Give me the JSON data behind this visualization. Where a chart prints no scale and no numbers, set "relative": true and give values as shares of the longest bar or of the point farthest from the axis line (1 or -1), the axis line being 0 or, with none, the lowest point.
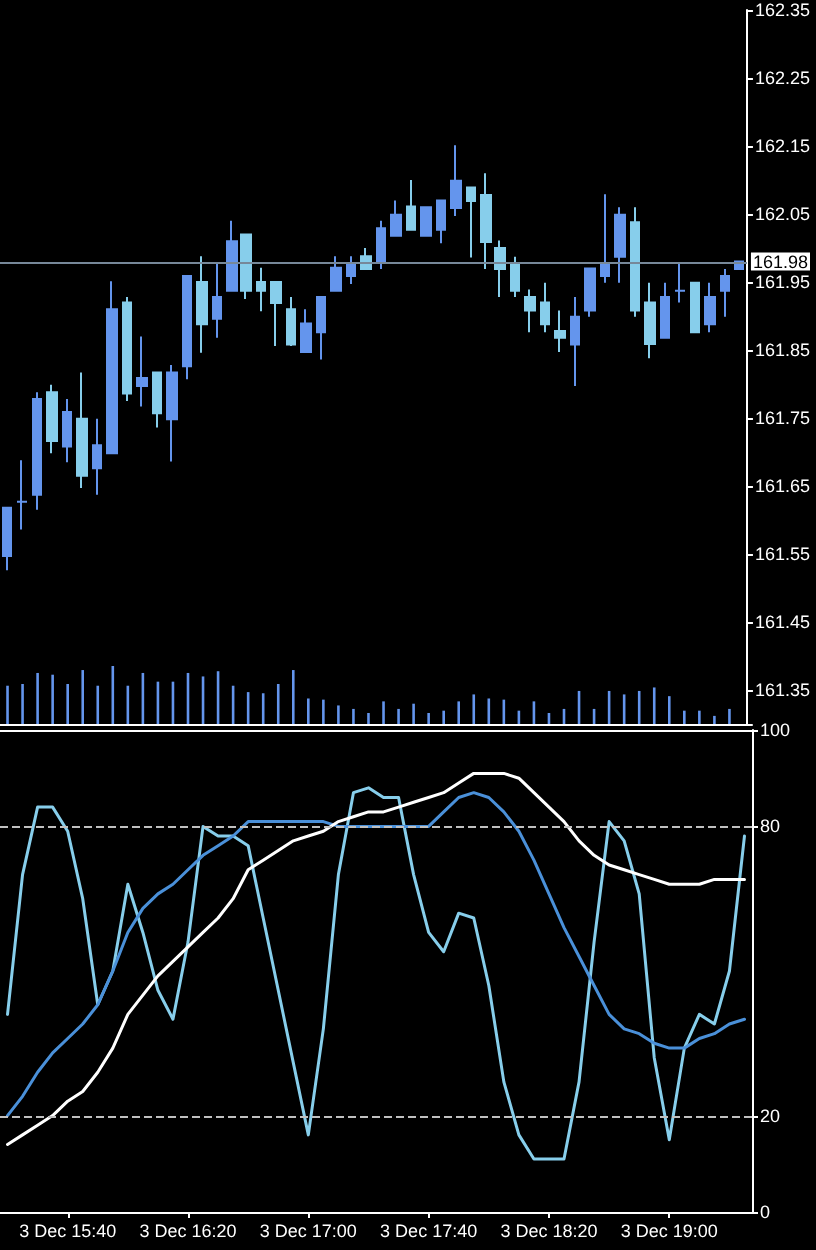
{
  "chart_data": [
    {
      "type": "candlestick",
      "categories": [
        null,
        null,
        null,
        null,
        null,
        null,
        null,
        null,
        null,
        null,
        null,
        null,
        null,
        null,
        null,
        null,
        null,
        null,
        null,
        null,
        null,
        null,
        null,
        null,
        null,
        null,
        null,
        null,
        null,
        null,
        null,
        null,
        null,
        null,
        null,
        null,
        null,
        null,
        null,
        null,
        null,
        null,
        null,
        null,
        null,
        null,
        null,
        null,
        null,
        null
      ],
      "ohlc": [
        [
          161.547,
          161.618,
          161.526,
          161.618
        ],
        [
          161.627,
          161.688,
          161.586,
          161.627
        ],
        [
          161.637,
          161.788,
          161.615,
          161.778
        ],
        [
          161.788,
          161.799,
          161.698,
          161.716
        ],
        [
          161.708,
          161.778,
          161.685,
          161.759
        ],
        [
          161.749,
          161.817,
          161.647,
          161.665
        ],
        [
          161.676,
          161.749,
          161.637,
          161.71
        ],
        [
          161.698,
          161.951,
          161.698,
          161.91
        ],
        [
          161.92,
          161.928,
          161.775,
          161.786
        ],
        [
          161.797,
          161.87,
          161.767,
          161.809
        ],
        [
          161.817,
          161.817,
          161.736,
          161.757
        ],
        [
          161.748,
          161.828,
          161.686,
          161.817
        ],
        [
          161.826,
          161.959,
          161.807,
          161.959
        ],
        [
          161.95,
          161.988,
          161.846,
          161.888
        ],
        [
          161.896,
          161.978,
          161.868,
          161.928
        ],
        [
          161.937,
          162.04,
          161.937,
          162.01
        ],
        [
          162.02,
          162.02,
          161.925,
          161.937
        ],
        [
          161.95,
          161.971,
          161.907,
          161.937
        ],
        [
          161.95,
          161.95,
          161.856,
          161.919
        ],
        [
          161.91,
          161.928,
          161.856,
          161.858
        ],
        [
          161.847,
          161.91,
          161.847,
          161.889
        ],
        [
          161.876,
          161.928,
          161.836,
          161.928
        ],
        [
          161.937,
          161.988,
          161.937,
          161.971
        ],
        [
          161.959,
          161.988,
          161.947,
          161.978
        ],
        [
          161.988,
          162.0,
          161.969,
          161.969
        ],
        [
          161.978,
          162.04,
          161.969,
          162.029
        ],
        [
          162.018,
          162.07,
          162.018,
          162.049
        ],
        [
          162.061,
          162.1,
          162.027,
          162.027
        ],
        [
          162.018,
          162.06,
          162.018,
          162.06
        ],
        [
          162.027,
          162.07,
          162.007,
          162.07
        ],
        [
          162.059,
          162.151,
          162.047,
          162.099
        ],
        [
          162.089,
          162.089,
          161.986,
          162.069
        ],
        [
          162.078,
          162.11,
          161.969,
          162.009
        ],
        [
          162.0,
          162.011,
          161.928,
          161.969
        ],
        [
          161.978,
          161.987,
          161.928,
          161.937
        ],
        [
          161.928,
          161.939,
          161.876,
          161.908
        ],
        [
          161.92,
          161.949,
          161.876,
          161.888
        ],
        [
          161.878,
          161.908,
          161.847,
          161.868
        ],
        [
          161.858,
          161.928,
          161.797,
          161.899
        ],
        [
          161.908,
          161.97,
          161.899,
          161.97
        ],
        [
          161.959,
          162.079,
          161.949,
          161.978
        ],
        [
          161.987,
          162.06,
          161.949,
          162.049
        ],
        [
          162.038,
          162.06,
          161.899,
          161.908
        ],
        [
          161.92,
          161.949,
          161.838,
          161.859
        ],
        [
          161.868,
          161.949,
          161.868,
          161.928
        ],
        [
          161.937,
          161.978,
          161.92,
          161.937
        ],
        [
          161.949,
          161.949,
          161.876,
          161.876
        ],
        [
          161.888,
          161.949,
          161.876,
          161.928
        ],
        [
          161.937,
          161.969,
          161.899,
          161.959
        ],
        [
          161.969,
          161.98,
          161.969,
          161.98
        ]
      ],
      "colors": [
        "#6495ed",
        "#6495ed",
        "#6495ed",
        "#87ceeb",
        "#6495ed",
        "#87ceeb",
        "#6495ed",
        "#6495ed",
        "#87ceeb",
        "#6495ed",
        "#87ceeb",
        "#6495ed",
        "#6495ed",
        "#87ceeb",
        "#6495ed",
        "#6495ed",
        "#87ceeb",
        "#87ceeb",
        "#87ceeb",
        "#87ceeb",
        "#6495ed",
        "#6495ed",
        "#6495ed",
        "#6495ed",
        "#87ceeb",
        "#6495ed",
        "#6495ed",
        "#87ceeb",
        "#6495ed",
        "#6495ed",
        "#6495ed",
        "#87ceeb",
        "#87ceeb",
        "#87ceeb",
        "#87ceeb",
        "#87ceeb",
        "#87ceeb",
        "#87ceeb",
        "#6495ed",
        "#6495ed",
        "#6495ed",
        "#6495ed",
        "#87ceeb",
        "#87ceeb",
        "#6495ed",
        "#6495ed",
        "#87ceeb",
        "#6495ed",
        "#6495ed",
        "#6495ed"
      ],
      "ylim": [
        161.3,
        162.35
      ],
      "yticks": [
        161.35,
        161.45,
        161.55,
        161.65,
        161.75,
        161.85,
        161.95,
        162.05,
        162.15,
        162.25,
        162.35
      ],
      "ref_lines": [
        {
          "axis": "y",
          "value": 161.98,
          "label": "161.98",
          "color": "#778899"
        }
      ]
    },
    {
      "type": "bar",
      "relative": true,
      "categories": [
        null,
        null,
        null,
        null,
        null,
        null,
        null,
        null,
        null,
        null,
        null,
        null,
        null,
        null,
        null,
        null,
        null,
        null,
        null,
        null,
        null,
        null,
        null,
        null,
        null,
        null,
        null,
        null,
        null,
        null,
        null,
        null,
        null,
        null,
        null,
        null,
        null,
        null,
        null,
        null,
        null,
        null,
        null,
        null,
        null,
        null,
        null,
        null,
        null,
        null
      ],
      "values": [
        0.66,
        0.69,
        0.88,
        0.85,
        0.69,
        0.93,
        0.66,
        1,
        0.66,
        0.88,
        0.73,
        0.73,
        0.88,
        0.82,
        0.91,
        0.66,
        0.55,
        0.53,
        0.69,
        0.93,
        0.44,
        0.42,
        0.32,
        0.26,
        0.19,
        0.39,
        0.26,
        0.35,
        0.19,
        0.23,
        0.39,
        0.51,
        0.44,
        0.42,
        0.23,
        0.39,
        0.19,
        0.26,
        0.57,
        0.26,
        0.57,
        0.51,
        0.57,
        0.63,
        0.48,
        0.23,
        0.23,
        0.14,
        0.26,
        null
      ],
      "color": "#6495ed"
    },
    {
      "type": "line",
      "categories": [
        null,
        null,
        null,
        null,
        "3 Dec 15:40",
        null,
        null,
        null,
        null,
        null,
        null,
        null,
        "3 Dec 16:20",
        null,
        null,
        null,
        null,
        null,
        null,
        null,
        "3 Dec 17:00",
        null,
        null,
        null,
        null,
        null,
        null,
        null,
        "3 Dec 17:40",
        null,
        null,
        null,
        null,
        null,
        null,
        null,
        "3 Dec 18:20",
        null,
        null,
        null,
        null,
        null,
        null,
        null,
        "3 Dec 19:00",
        null,
        null,
        null,
        null,
        null
      ],
      "series": [
        {
          "color": "#87ceeb",
          "values": [
            41,
            70,
            84,
            84,
            79,
            65,
            43,
            50,
            68,
            58,
            46,
            40,
            56,
            80,
            78,
            78,
            76,
            61,
            46,
            31,
            16,
            38,
            70,
            87,
            88,
            86,
            86,
            70,
            58,
            54,
            62,
            61,
            47,
            27,
            16,
            11,
            11,
            11,
            27,
            56,
            81,
            77,
            66,
            32,
            15,
            34,
            41,
            39,
            50,
            78
          ]
        },
        {
          "color": "#4a90d9",
          "values": [
            20,
            24,
            29,
            33,
            36,
            39,
            43,
            50,
            58,
            63,
            66,
            68,
            71,
            74,
            76,
            78,
            81,
            81,
            81,
            81,
            81,
            81,
            80,
            80,
            80,
            80,
            80,
            80,
            80,
            83,
            86,
            87,
            86,
            83,
            79,
            73,
            66,
            59,
            53,
            47,
            41,
            38,
            37,
            35,
            34,
            34,
            36,
            37,
            39,
            40
          ]
        },
        {
          "color": "#ffffff",
          "values": [
            14,
            16,
            18,
            20,
            23,
            25,
            29,
            34,
            41,
            45,
            49,
            52,
            55,
            58,
            61,
            65,
            71,
            73,
            75,
            77,
            78,
            79,
            81,
            82,
            83,
            83,
            84,
            85,
            86,
            87,
            89,
            91,
            91,
            91,
            90,
            87,
            84,
            81,
            77,
            74,
            72,
            71,
            70,
            69,
            68,
            68,
            68,
            69,
            69,
            69
          ]
        }
      ],
      "ylim": [
        0,
        100
      ],
      "yticks": [
        0,
        20,
        80,
        100
      ],
      "marker": "none",
      "ref_lines": [
        {
          "axis": "y",
          "value": 80,
          "color": "#c0c0c0",
          "line_style": "dashed"
        },
        {
          "axis": "y",
          "value": 20,
          "color": "#c0c0c0",
          "line_style": "dashed"
        }
      ]
    }
  ]
}
